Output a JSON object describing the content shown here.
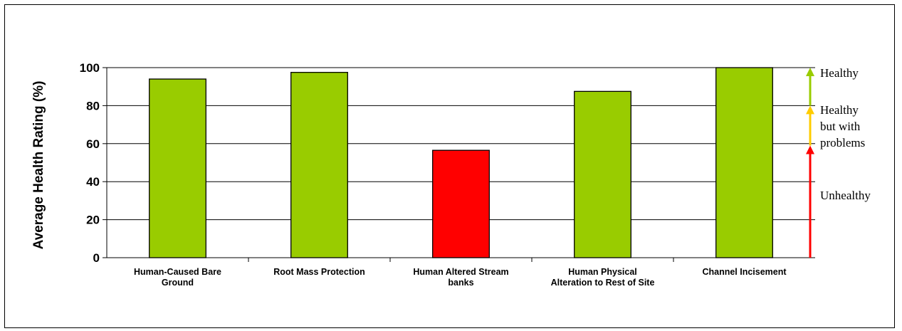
{
  "chart_data": {
    "type": "bar",
    "title": "",
    "xlabel": "",
    "ylabel": "Average Health Rating (%)",
    "ylim": [
      0,
      100
    ],
    "yticks": [
      0,
      20,
      40,
      60,
      80,
      100
    ],
    "grid": true,
    "categories": [
      [
        "Human-Caused Bare",
        "Ground"
      ],
      [
        "Root Mass Protection"
      ],
      [
        "Human Altered Stream",
        "banks"
      ],
      [
        "Human Physical",
        "Alteration to Rest of Site"
      ],
      [
        "Channel Incisement"
      ]
    ],
    "values": [
      94,
      97.5,
      56.5,
      87.5,
      100
    ],
    "bar_colors": [
      "#99cc00",
      "#99cc00",
      "#ff0000",
      "#99cc00",
      "#99cc00"
    ],
    "rating_scale": [
      {
        "label_lines": [
          "Unhealthy"
        ],
        "from": 0,
        "to": 59,
        "color": "#ff0000"
      },
      {
        "label_lines": [
          "Healthy",
          "but with",
          "problems"
        ],
        "from": 59,
        "to": 80,
        "color": "#ffcc00"
      },
      {
        "label_lines": [
          "Healthy"
        ],
        "from": 80,
        "to": 100,
        "color": "#99cc00"
      }
    ]
  }
}
